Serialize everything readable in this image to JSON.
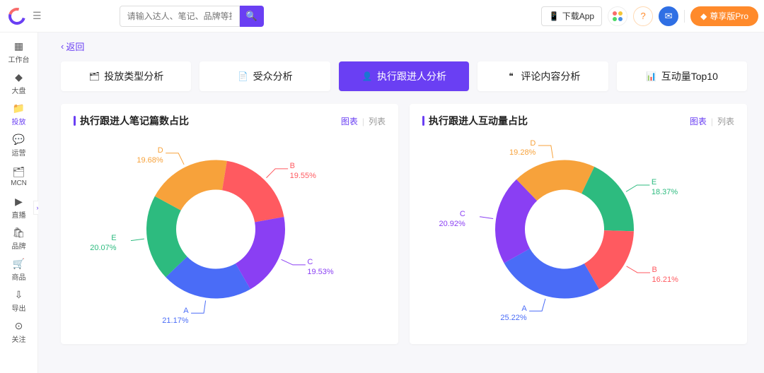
{
  "topbar": {
    "search_placeholder": "请输入达人、笔记、品牌等搜",
    "download_label": "下载App",
    "pro_label": "尊享版Pro",
    "grid_colors": [
      "#f86c6b",
      "#f3c536",
      "#4cd964",
      "#4a90e2"
    ],
    "help_color": "#ff8a2b",
    "mail_bg": "#2f6fe4"
  },
  "sidebar": {
    "items": [
      {
        "icon": "▦",
        "label": "工作台"
      },
      {
        "icon": "◆",
        "label": "大盘"
      },
      {
        "icon": "📁",
        "label": "投放"
      },
      {
        "icon": "💬",
        "label": "运营"
      },
      {
        "icon": "🗂",
        "label": "MCN"
      },
      {
        "icon": "▶",
        "label": "直播"
      },
      {
        "icon": "🛍",
        "label": "品牌"
      },
      {
        "icon": "🛒",
        "label": "商品"
      },
      {
        "icon": "⇩",
        "label": "导出"
      },
      {
        "icon": "⊙",
        "label": "关注"
      }
    ],
    "active_index": 2,
    "active_color": "#6a3ff3",
    "expand_icon": "»"
  },
  "main": {
    "back_label": "返回",
    "tabs": [
      {
        "icon": "🗂",
        "label": "投放类型分析"
      },
      {
        "icon": "📄",
        "label": "受众分析"
      },
      {
        "icon": "👤",
        "label": "执行跟进人分析"
      },
      {
        "icon": "❝",
        "label": "评论内容分析"
      },
      {
        "icon": "📊",
        "label": "互动量Top10"
      }
    ],
    "active_tab": 2
  },
  "charts": {
    "type": "donut",
    "inner_radius": 56,
    "outer_radius": 98,
    "label_fontsize": 11,
    "colors": {
      "A": "#4a6cf7",
      "B": "#ff5a60",
      "C": "#8a3ff3",
      "D": "#f7a23b",
      "E": "#2dbb7f"
    },
    "toggle": {
      "chart": "图表",
      "table": "列表",
      "selected": "chart"
    },
    "left": {
      "title": "执行跟进人笔记篇数占比",
      "slices": [
        {
          "label": "A",
          "pct": 21.17
        },
        {
          "label": "C",
          "pct": 19.53
        },
        {
          "label": "B",
          "pct": 19.55
        },
        {
          "label": "D",
          "pct": 19.68
        },
        {
          "label": "E",
          "pct": 20.07
        }
      ]
    },
    "right": {
      "title": "执行跟进人互动量占比",
      "slices": [
        {
          "label": "A",
          "pct": 25.22
        },
        {
          "label": "B",
          "pct": 16.21
        },
        {
          "label": "E",
          "pct": 18.37
        },
        {
          "label": "D",
          "pct": 19.28
        },
        {
          "label": "C",
          "pct": 20.92
        }
      ]
    }
  }
}
